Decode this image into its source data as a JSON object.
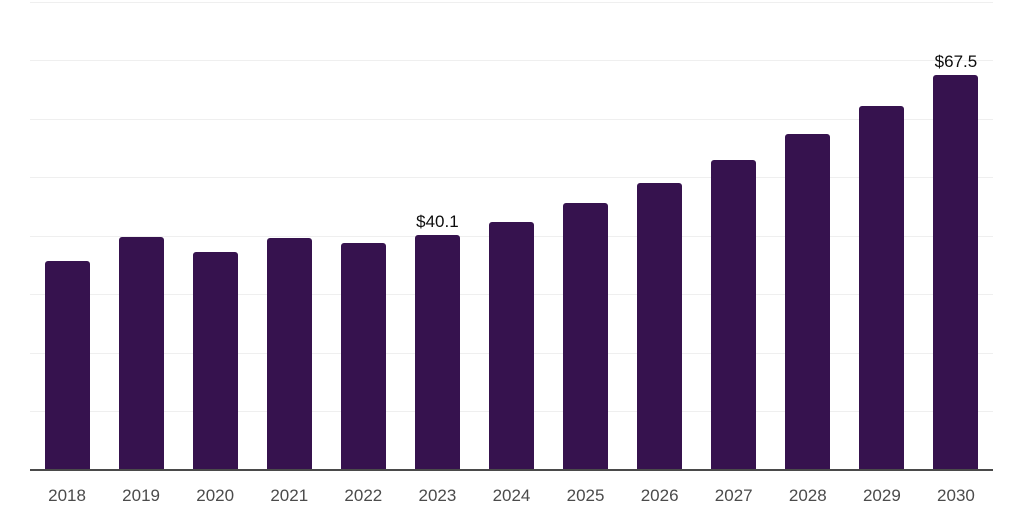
{
  "chart_data": {
    "type": "bar",
    "title": "",
    "xlabel": "",
    "ylabel": "",
    "categories": [
      "2018",
      "2019",
      "2020",
      "2021",
      "2022",
      "2023",
      "2024",
      "2025",
      "2026",
      "2027",
      "2028",
      "2029",
      "2030"
    ],
    "values": [
      35.7,
      39.8,
      37.2,
      39.6,
      38.7,
      40.1,
      42.3,
      45.6,
      49.1,
      53.0,
      57.4,
      62.2,
      67.5
    ],
    "data_labels": [
      "",
      "",
      "",
      "",
      "",
      "$40.1",
      "",
      "",
      "",
      "",
      "",
      "",
      "$67.5"
    ],
    "ylim": [
      0,
      80
    ],
    "gridline_step": 10,
    "grid": true,
    "y_tick_labels_visible": false,
    "legend_position": "none",
    "colors": {
      "bar": "#36124E",
      "gridline": "#efefef",
      "axis_line": "#4a4a4a",
      "value_label": "#0d0d0d",
      "tick_label": "#4b4b4b",
      "background": "#ffffff"
    }
  }
}
